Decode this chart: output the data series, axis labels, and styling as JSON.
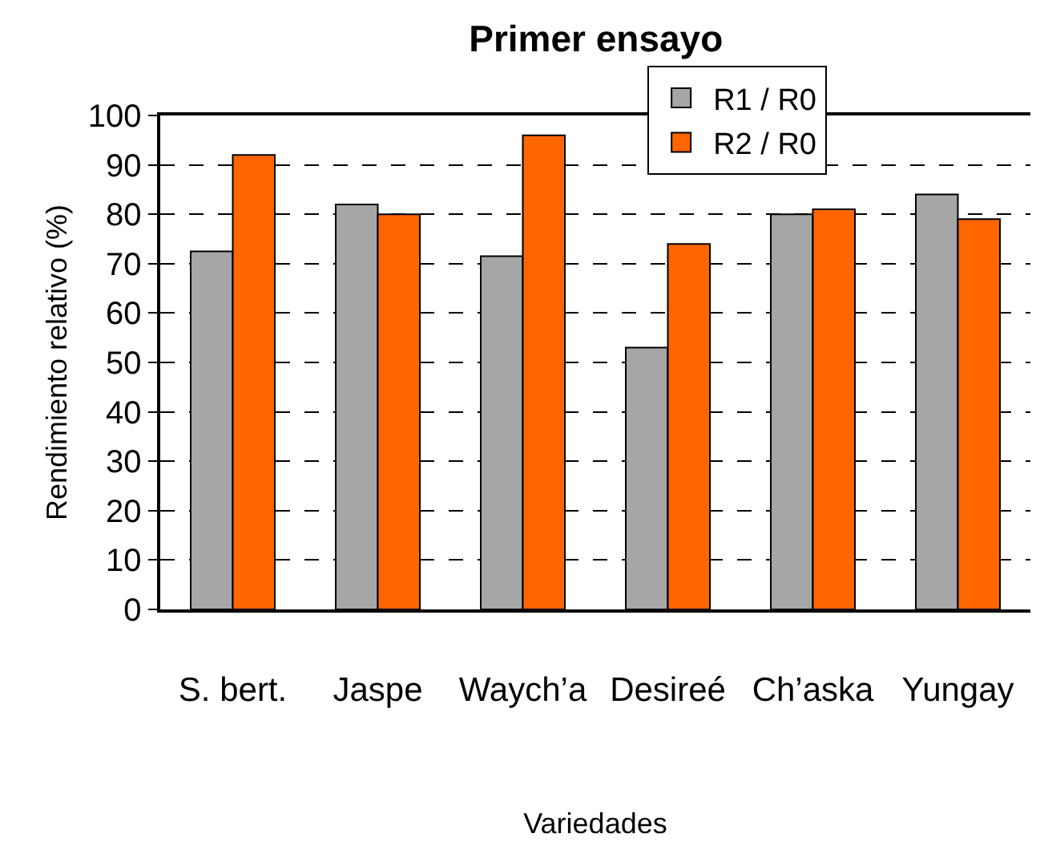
{
  "chart_data": {
    "type": "bar",
    "title": "Primer ensayo",
    "xlabel": "Variedades",
    "ylabel": "Rendimiento relativo (%)",
    "categories": [
      "S. bert.",
      "Jaspe",
      "Waych’a",
      "Desireé",
      "Ch’aska",
      "Yungay"
    ],
    "series": [
      {
        "name": "R1 / R0",
        "color": "#a6a6a6",
        "values": [
          72.5,
          82,
          71.5,
          53,
          80,
          84
        ]
      },
      {
        "name": "R2 / R0",
        "color": "#ff6600",
        "values": [
          92,
          80,
          96,
          74,
          81,
          79
        ]
      }
    ],
    "ylim": [
      0,
      100
    ],
    "yticks": [
      0,
      10,
      20,
      30,
      40,
      50,
      60,
      70,
      80,
      90,
      100
    ],
    "grid": "y",
    "legend": "top"
  }
}
